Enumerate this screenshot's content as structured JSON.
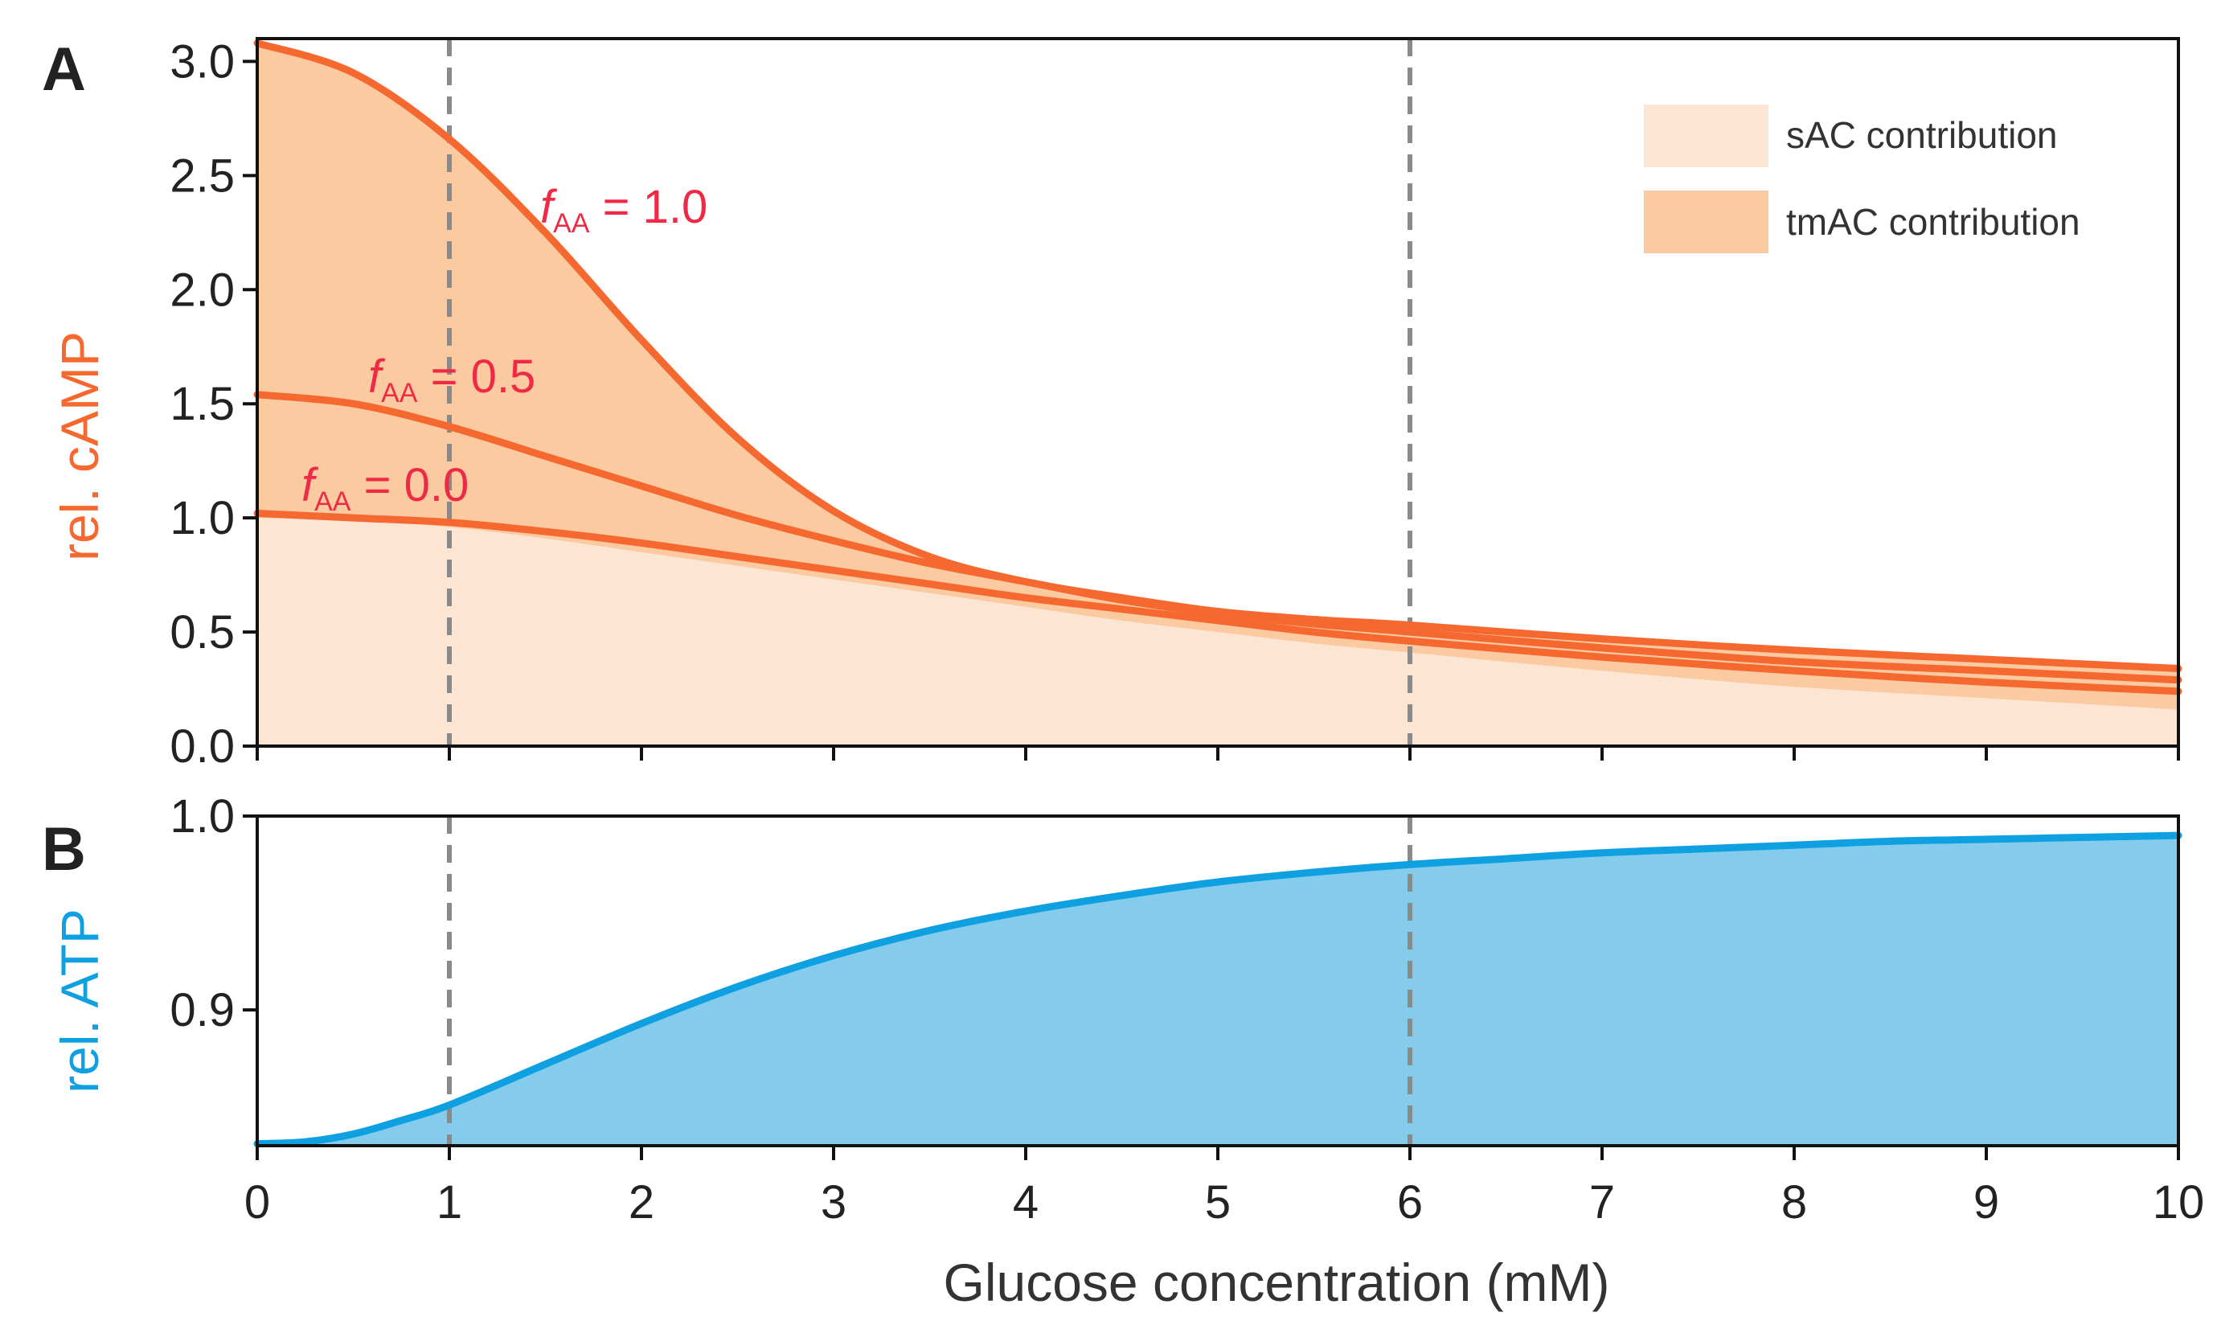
{
  "figure": {
    "panel_a_letter": "A",
    "panel_b_letter": "B",
    "xlabel": "Glucose concentration (mM)",
    "xticks": [
      "0",
      "1",
      "2",
      "3",
      "4",
      "5",
      "6",
      "7",
      "8",
      "9",
      "10"
    ]
  },
  "chart_data": [
    {
      "id": "A",
      "type": "area",
      "ylabel": "rel. cAMP",
      "xlim": [
        0,
        10
      ],
      "ylim": [
        0,
        3.1
      ],
      "yticks": [
        "0.0",
        "0.5",
        "1.0",
        "1.5",
        "2.0",
        "2.5",
        "3.0"
      ],
      "vlines": [
        1,
        6
      ],
      "x": [
        0,
        0.5,
        1,
        1.5,
        2,
        2.5,
        3,
        3.5,
        4,
        4.5,
        5,
        5.5,
        6,
        7,
        8,
        9,
        10
      ],
      "series": [
        {
          "name": "f_AA = 1.0",
          "f_label": "f",
          "sub": "AA",
          "value_text": " = 1.0",
          "values": [
            3.08,
            2.95,
            2.66,
            2.25,
            1.78,
            1.35,
            1.03,
            0.83,
            0.72,
            0.65,
            0.59,
            0.555,
            0.53,
            0.47,
            0.42,
            0.38,
            0.34
          ]
        },
        {
          "name": "f_AA = 0.5",
          "f_label": "f",
          "sub": "AA",
          "value_text": " = 0.5",
          "values": [
            1.54,
            1.5,
            1.4,
            1.27,
            1.14,
            1.01,
            0.9,
            0.8,
            0.72,
            0.64,
            0.58,
            0.535,
            0.5,
            0.43,
            0.37,
            0.33,
            0.29
          ]
        },
        {
          "name": "f_AA = 0.0",
          "f_label": "f",
          "sub": "AA",
          "value_text": " = 0.0",
          "values": [
            1.02,
            1.0,
            0.98,
            0.94,
            0.89,
            0.83,
            0.77,
            0.71,
            0.65,
            0.6,
            0.55,
            0.5,
            0.46,
            0.39,
            0.33,
            0.28,
            0.24
          ]
        }
      ],
      "sAC_values": [
        1.0,
        0.99,
        0.96,
        0.91,
        0.85,
        0.79,
        0.73,
        0.67,
        0.61,
        0.55,
        0.5,
        0.45,
        0.41,
        0.33,
        0.26,
        0.21,
        0.16
      ],
      "legend": [
        {
          "label": "sAC contribution",
          "color": "#fde5d4"
        },
        {
          "label": "tmAC contribution",
          "color": "#fbcaa0"
        }
      ],
      "legend_position": "top-right",
      "colors": {
        "line": "#f5682f",
        "label": "#ee2a44",
        "ylabel": "#f5682f"
      }
    },
    {
      "id": "B",
      "type": "area",
      "ylabel": "rel. ATP",
      "xlim": [
        0,
        10
      ],
      "ylim": [
        0.83,
        1.0
      ],
      "yticks": [
        "0.9",
        "1.0"
      ],
      "ytick_values": [
        0.9,
        1.0
      ],
      "vlines": [
        1,
        6
      ],
      "x": [
        0,
        0.25,
        0.5,
        0.75,
        1,
        1.5,
        2,
        2.5,
        3,
        3.5,
        4,
        4.5,
        5,
        5.5,
        6,
        6.5,
        7,
        7.5,
        8,
        8.5,
        9,
        9.5,
        10
      ],
      "values": [
        0.831,
        0.832,
        0.836,
        0.843,
        0.851,
        0.872,
        0.893,
        0.912,
        0.928,
        0.941,
        0.951,
        0.959,
        0.966,
        0.971,
        0.975,
        0.978,
        0.981,
        0.983,
        0.985,
        0.987,
        0.988,
        0.989,
        0.99
      ],
      "colors": {
        "line": "#0ea0e0",
        "fill": "#85ccec",
        "ylabel": "#0ea0e0"
      }
    }
  ]
}
